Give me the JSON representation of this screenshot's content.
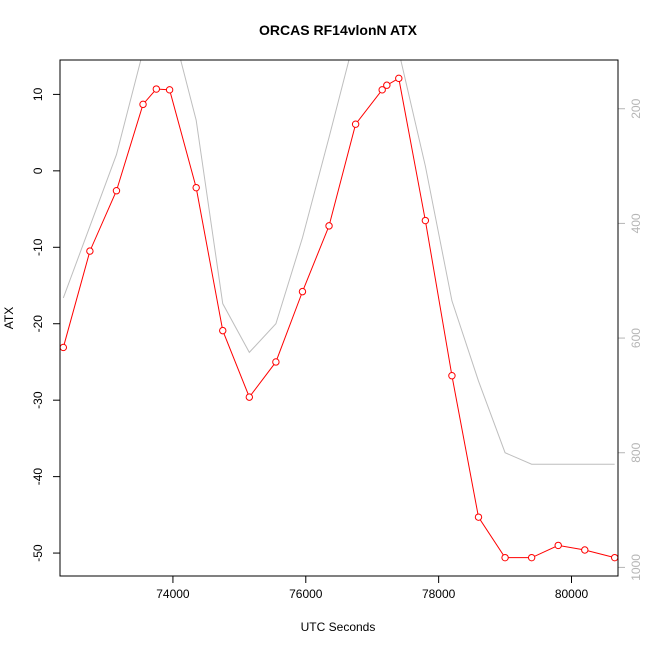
{
  "chart_data": {
    "type": "line",
    "title": "ORCAS RF14vlonN ATX",
    "xlabel": "UTC Seconds",
    "ylabel": "ATX",
    "xlim": [
      72300,
      80700
    ],
    "ylim": [
      -53,
      14.5
    ],
    "x_ticks": [
      74000,
      76000,
      78000,
      80000
    ],
    "y_ticks": [
      10,
      0,
      -10,
      -20,
      -30,
      -40,
      -50
    ],
    "colors": {
      "atx": "#ff0000",
      "pressure": "#bebebe",
      "right_axis": "#b5b5b5",
      "frame": "#000000"
    },
    "series": [
      {
        "axis": "left",
        "marker": "open-circle",
        "x": [
          72350,
          72750,
          73150,
          73550,
          73750,
          73950,
          74350,
          74750,
          75150,
          75550,
          75950,
          76350,
          76750,
          77150,
          77220,
          77400,
          77800,
          78200,
          78600,
          79000,
          79400,
          79800,
          80200,
          80650
        ],
        "y": [
          -23.1,
          -10.5,
          -2.6,
          8.7,
          10.7,
          10.6,
          -2.2,
          -20.9,
          -29.6,
          -25.0,
          -15.8,
          -7.2,
          6.1,
          10.6,
          11.2,
          12.1,
          -6.5,
          -26.8,
          -45.3,
          -50.6,
          -50.6,
          -49.0,
          -49.6,
          -50.6
        ]
      },
      {
        "axis": "right",
        "y_axis_right": {
          "ticks": [
            200,
            400,
            600,
            800,
            1000
          ],
          "ylim": [
            1015,
            115
          ]
        },
        "x": [
          72350,
          72750,
          73150,
          73550,
          73950,
          74350,
          74750,
          75150,
          75550,
          75950,
          76350,
          76750,
          77150,
          77400,
          77800,
          78200,
          78600,
          79000,
          79400,
          79800,
          80200,
          80650
        ],
        "y": [
          530,
          405,
          280,
          100,
          40,
          220,
          540,
          625,
          575,
          425,
          250,
          70,
          20,
          100,
          300,
          535,
          675,
          800,
          820,
          820,
          820,
          820
        ]
      }
    ]
  }
}
